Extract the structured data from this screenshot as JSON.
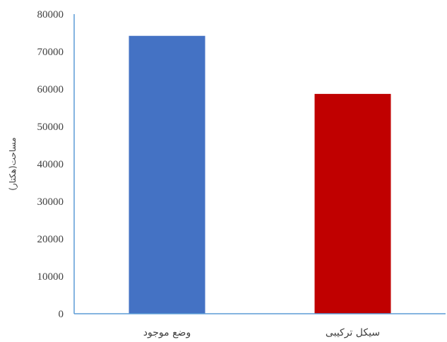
{
  "chart_data": {
    "type": "bar",
    "title": "",
    "xlabel": "",
    "ylabel": "مساحت(هکتار)",
    "categories": [
      "وضع موجود",
      "سیکل ترکیبی"
    ],
    "values": [
      74200,
      58700
    ],
    "bar_colors": [
      "#4472C4",
      "#C00000"
    ],
    "ylim": [
      0,
      80000
    ],
    "yticks": [
      0,
      10000,
      20000,
      30000,
      40000,
      50000,
      60000,
      70000,
      80000
    ],
    "grid": false,
    "legend": "none",
    "axis_color": "#5B9BD5"
  }
}
